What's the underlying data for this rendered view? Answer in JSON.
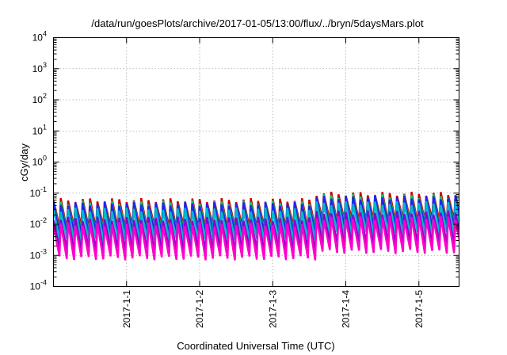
{
  "chart_data": {
    "type": "line",
    "title": "/data/run/goesPlots/archive/2017-01-05/13:00/flux/../bryn/5daysMars.plot",
    "xlabel": "Coordinated Universal Time (UTC)",
    "ylabel": "cGy/day",
    "yscale": "log",
    "ylim": [
      0.0001,
      10000
    ],
    "y_ticks": [
      {
        "base": "10",
        "exp": "-4"
      },
      {
        "base": "10",
        "exp": "-3"
      },
      {
        "base": "10",
        "exp": "-2"
      },
      {
        "base": "10",
        "exp": "-1"
      },
      {
        "base": "10",
        "exp": "0"
      },
      {
        "base": "10",
        "exp": "1"
      },
      {
        "base": "10",
        "exp": "2"
      },
      {
        "base": "10",
        "exp": "3"
      },
      {
        "base": "10",
        "exp": "4"
      }
    ],
    "xlim_days": [
      0,
      5.55
    ],
    "x_ticks": [
      {
        "label": "2017-1-1",
        "day": 1
      },
      {
        "label": "2017-1-2",
        "day": 2
      },
      {
        "label": "2017-1-3",
        "day": 3
      },
      {
        "label": "2017-1-4",
        "day": 4
      },
      {
        "label": "2017-1-5",
        "day": 5
      }
    ],
    "x_start": "2016-12-31",
    "grid": true,
    "legend": "none",
    "cycles_per_day": 10,
    "series": [
      {
        "color": "#cc0000",
        "peak": 0.06,
        "trough": 0.008
      },
      {
        "color": "#00cc66",
        "peak": 0.05,
        "trough": 0.006
      },
      {
        "color": "#2222ee",
        "peak": 0.045,
        "trough": 0.005
      },
      {
        "color": "#00b8cc",
        "peak": 0.03,
        "trough": 0.003
      },
      {
        "color": "#8800cc",
        "peak": 0.015,
        "trough": 0.0015
      },
      {
        "color": "#ff00cc",
        "peak": 0.01,
        "trough": 0.0008
      }
    ],
    "late_boost": {
      "from_day": 3.6,
      "factor": 1.6
    }
  }
}
